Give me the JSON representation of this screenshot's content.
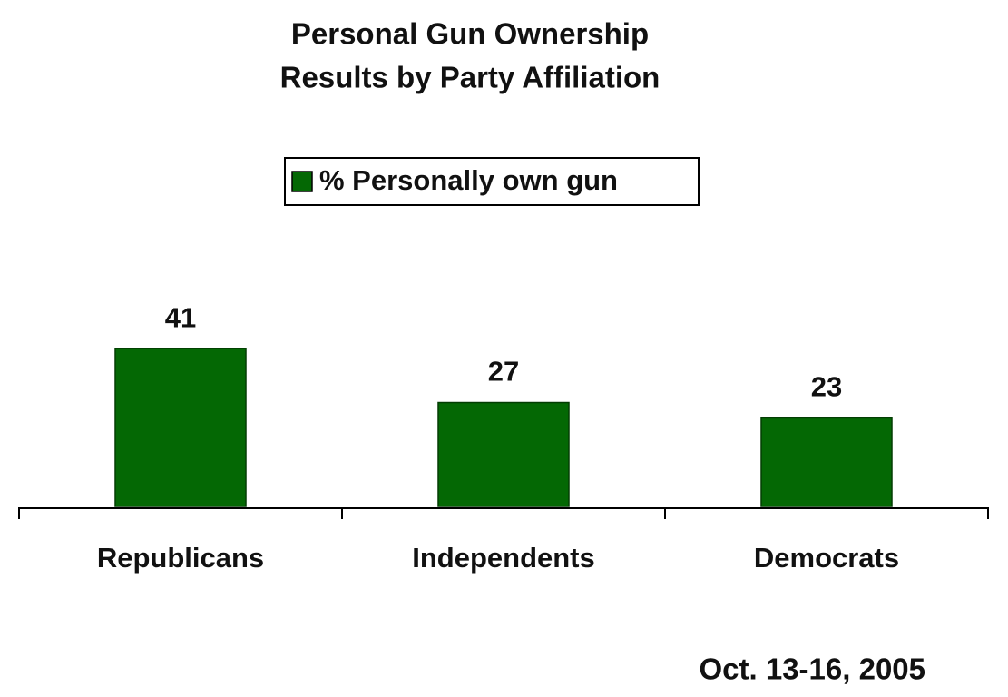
{
  "chart_data": {
    "type": "bar",
    "title": [
      "Personal Gun Ownership",
      "Results by Party Affiliation"
    ],
    "categories": [
      "Republicans",
      "Independents",
      "Democrats"
    ],
    "series": [
      {
        "name": "% Personally own gun",
        "color": "#046804",
        "values": [
          41,
          27,
          23
        ]
      }
    ],
    "note": "Oct. 13-16, 2005"
  }
}
